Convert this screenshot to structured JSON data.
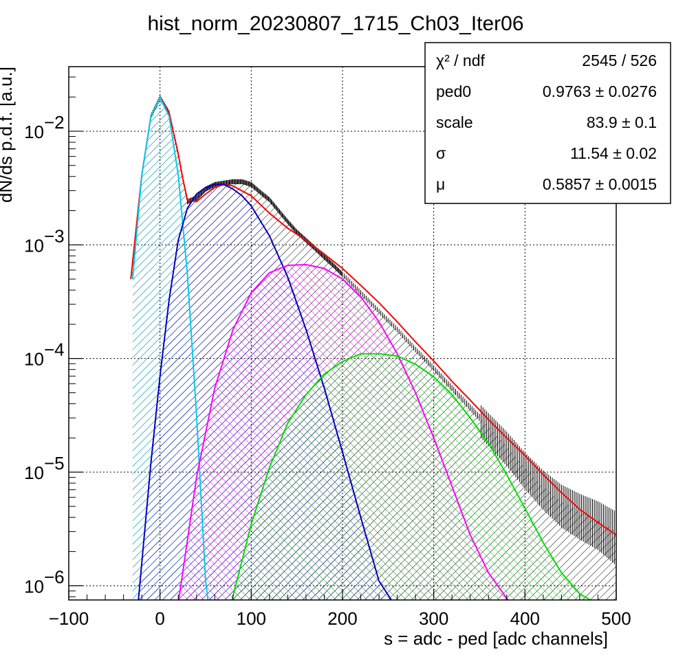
{
  "chart_data": {
    "type": "line",
    "title": "hist_norm_20230807_1715_Ch03_Iter06",
    "xlabel": "s = adc - ped [adc channels]",
    "ylabel": "dN/ds p.d.f. [a.u.]",
    "xlim": [
      -100,
      500
    ],
    "ylim": [
      7.5e-07,
      0.037
    ],
    "yscale": "log",
    "grid": true,
    "x_ticks": [
      -100,
      0,
      100,
      200,
      300,
      400,
      500
    ],
    "x_tick_labels": [
      "−100",
      "0",
      "100",
      "200",
      "300",
      "400",
      "500"
    ],
    "y_tick_labels": [
      {
        "value": 1e-06,
        "mantissa": "10",
        "exponent": "−6"
      },
      {
        "value": 1e-05,
        "mantissa": "10",
        "exponent": "−5"
      },
      {
        "value": 0.0001,
        "mantissa": "10",
        "exponent": "−4"
      },
      {
        "value": 0.001,
        "mantissa": "10",
        "exponent": "−3"
      },
      {
        "value": 0.01,
        "mantissa": "10",
        "exponent": "−2"
      }
    ],
    "legend_placement": "top-right",
    "stats": [
      {
        "label": "χ² / ndf",
        "value": "2545 / 526"
      },
      {
        "label": "ped0",
        "value": "0.9763 ± 0.0276"
      },
      {
        "label": "scale",
        "value": "83.9 ± 0.1"
      },
      {
        "label": "σ",
        "value": "11.54 ± 0.02"
      },
      {
        "label": "μ",
        "value": "0.5857 ± 0.0015"
      }
    ],
    "data_histogram": {
      "color": "#000000",
      "x": [
        -30,
        -20,
        -10,
        0,
        10,
        20,
        30,
        40,
        50,
        60,
        70,
        80,
        90,
        100,
        110,
        120,
        130,
        140,
        150,
        160,
        170,
        180,
        190,
        200,
        220,
        240,
        260,
        280,
        300,
        320,
        340,
        360,
        380,
        400,
        420,
        440,
        460,
        480,
        500
      ],
      "y": [
        0.00055,
        0.0041,
        0.0135,
        0.0198,
        0.0145,
        0.0063,
        0.0024,
        0.0026,
        0.0031,
        0.0034,
        0.0035,
        0.0036,
        0.0036,
        0.0034,
        0.0029,
        0.0025,
        0.002,
        0.0016,
        0.0013,
        0.0011,
        0.00093,
        0.00078,
        0.00066,
        0.00055,
        0.00038,
        0.00026,
        0.00018,
        0.00012,
        8.2e-05,
        5.5e-05,
        3.7e-05,
        2.5e-05,
        1.7e-05,
        1.1e-05,
        7.5e-06,
        5.5e-06,
        4.5e-06,
        3.8e-06,
        3e-06
      ]
    },
    "components": [
      {
        "color": "#ff0000",
        "fill": false,
        "x": [
          -32,
          -20,
          -10,
          0,
          10,
          20,
          25,
          30,
          40,
          50,
          60,
          70,
          80,
          100,
          120,
          140,
          160,
          180,
          200,
          220,
          240,
          260,
          280,
          300,
          320,
          340,
          360,
          380,
          400,
          420,
          440,
          460,
          480,
          500
        ],
        "y": [
          0.0005,
          0.0041,
          0.0135,
          0.0198,
          0.0145,
          0.0063,
          0.0038,
          0.0025,
          0.0024,
          0.0028,
          0.0032,
          0.0034,
          0.0033,
          0.0027,
          0.0019,
          0.0014,
          0.0011,
          0.00083,
          0.00062,
          0.00044,
          0.00031,
          0.00021,
          0.00014,
          9.5e-05,
          6.3e-05,
          4.3e-05,
          2.9e-05,
          2e-05,
          1.4e-05,
          9.5e-06,
          6.6e-06,
          4.7e-06,
          3.6e-06,
          2.8e-06
        ]
      },
      {
        "color": "#00ccee",
        "fill": true,
        "x": [
          -30,
          -20,
          -10,
          0,
          10,
          20,
          30,
          40,
          50,
          53
        ],
        "y": [
          0.0005,
          0.0041,
          0.0135,
          0.0198,
          0.0135,
          0.0041,
          0.00055,
          3.2e-05,
          1.1e-06,
          7e-07
        ]
      },
      {
        "color": "#0000bb",
        "fill": true,
        "x": [
          -24,
          -10,
          0,
          10,
          20,
          30,
          40,
          50,
          60,
          70,
          80,
          90,
          100,
          120,
          140,
          160,
          180,
          200,
          220,
          240,
          256
        ],
        "y": [
          7e-07,
          1.2e-05,
          7e-05,
          0.00033,
          0.0011,
          0.0021,
          0.0028,
          0.0032,
          0.0034,
          0.0034,
          0.0031,
          0.0027,
          0.0022,
          0.0012,
          0.00052,
          0.00018,
          5.5e-05,
          1.5e-05,
          4e-06,
          1.1e-06,
          7e-07
        ]
      },
      {
        "color": "#ff00ff",
        "fill": true,
        "x": [
          20,
          40,
          60,
          80,
          100,
          120,
          140,
          160,
          180,
          200,
          220,
          240,
          260,
          280,
          300,
          320,
          340,
          360,
          384
        ],
        "y": [
          7e-07,
          9e-06,
          5.5e-05,
          0.00018,
          0.00038,
          0.00057,
          0.00066,
          0.00067,
          0.00062,
          0.0005,
          0.00035,
          0.00021,
          0.00011,
          5e-05,
          2e-05,
          7.5e-06,
          2.8e-06,
          1.3e-06,
          7e-07
        ]
      },
      {
        "color": "#00dd00",
        "fill": true,
        "x": [
          78,
          100,
          120,
          140,
          160,
          180,
          200,
          220,
          240,
          260,
          280,
          300,
          320,
          340,
          360,
          380,
          400,
          420,
          440,
          460,
          478
        ],
        "y": [
          7e-07,
          3.5e-06,
          1.1e-05,
          2.7e-05,
          4.8e-05,
          7.3e-05,
          9.4e-05,
          0.00011,
          0.00011,
          0.000105,
          8.9e-05,
          6.9e-05,
          4.8e-05,
          3e-05,
          1.8e-05,
          9.5e-06,
          4.8e-06,
          2.4e-06,
          1.3e-06,
          8.5e-07,
          7e-07
        ]
      }
    ]
  }
}
